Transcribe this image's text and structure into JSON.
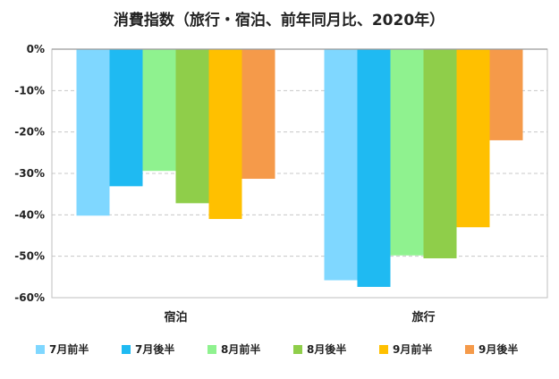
{
  "chart_data": {
    "type": "bar",
    "title": "消費指数（旅行・宿泊、前年同月比、2020年）",
    "xlabel": "",
    "ylabel": "",
    "ylim": [
      -60,
      0
    ],
    "yticks": [
      0,
      -10,
      -20,
      -30,
      -40,
      -50,
      -60
    ],
    "ytick_labels": [
      "0%",
      "-10%",
      "-20%",
      "-30%",
      "-40%",
      "-50%",
      "-60%"
    ],
    "grid": true,
    "legend_position": "bottom",
    "categories": [
      "宿泊",
      "旅行"
    ],
    "series": [
      {
        "name": "7月前半",
        "color": "#7fd7ff",
        "values": [
          -40.2,
          -55.8
        ]
      },
      {
        "name": "7月後半",
        "color": "#1fbaf2",
        "values": [
          -33.1,
          -57.4
        ]
      },
      {
        "name": "8月前半",
        "color": "#8ff28f",
        "values": [
          -29.4,
          -49.8
        ]
      },
      {
        "name": "8月後半",
        "color": "#8fce4a",
        "values": [
          -37.2,
          -50.5
        ]
      },
      {
        "name": "9月前半",
        "color": "#ffc000",
        "values": [
          -41.0,
          -43.0
        ]
      },
      {
        "name": "9月後半",
        "color": "#f59a4a",
        "values": [
          -31.3,
          -22.0
        ]
      }
    ]
  }
}
